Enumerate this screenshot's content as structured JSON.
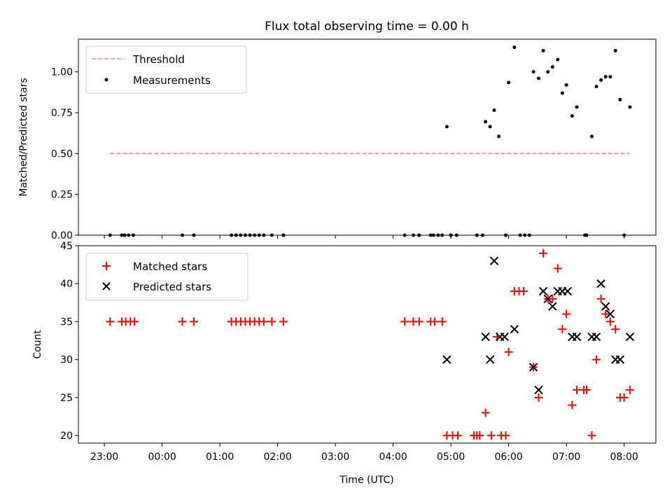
{
  "chart_data": [
    {
      "type": "scatter",
      "title": "Flux total observing time = 0.00 h",
      "xlabel": "",
      "ylabel": "Matched/Predicted stars",
      "xlim": [
        -0.45,
        9.55
      ],
      "ylim": [
        0.0,
        1.2
      ],
      "yticks": [
        "0.00",
        "0.25",
        "0.50",
        "0.75",
        "1.00"
      ],
      "legend_position": "upper-left",
      "threshold": {
        "name": "Threshold",
        "y": 0.5,
        "x_range": [
          0.1,
          9.1
        ],
        "color": "#ff8080",
        "style": "dashed"
      },
      "series": [
        {
          "name": "Measurements",
          "color": "#000000",
          "marker": "dot",
          "points": [
            [
              0.1,
              0
            ],
            [
              0.3,
              0
            ],
            [
              0.35,
              0
            ],
            [
              0.42,
              0
            ],
            [
              0.5,
              0
            ],
            [
              1.35,
              0
            ],
            [
              1.55,
              0
            ],
            [
              2.2,
              0
            ],
            [
              2.28,
              0
            ],
            [
              2.36,
              0
            ],
            [
              2.44,
              0
            ],
            [
              2.52,
              0
            ],
            [
              2.6,
              0
            ],
            [
              2.68,
              0
            ],
            [
              2.76,
              0
            ],
            [
              2.9,
              0
            ],
            [
              3.1,
              0
            ],
            [
              5.2,
              0
            ],
            [
              5.35,
              0
            ],
            [
              5.45,
              0
            ],
            [
              5.65,
              0
            ],
            [
              5.7,
              0
            ],
            [
              5.78,
              0
            ],
            [
              5.85,
              0
            ],
            [
              6.0,
              0
            ],
            [
              6.1,
              0
            ],
            [
              6.45,
              0
            ],
            [
              6.55,
              0
            ],
            [
              6.95,
              0
            ],
            [
              7.2,
              0
            ],
            [
              7.28,
              0
            ],
            [
              7.36,
              0
            ],
            [
              8.32,
              0
            ],
            [
              8.35,
              0
            ],
            [
              9.0,
              0
            ],
            [
              5.93,
              0.665
            ],
            [
              6.6,
              0.695
            ],
            [
              6.68,
              0.665
            ],
            [
              6.75,
              0.765
            ],
            [
              6.83,
              0.605
            ],
            [
              7.0,
              0.935
            ],
            [
              7.1,
              1.15
            ],
            [
              7.43,
              1.0
            ],
            [
              7.52,
              0.96
            ],
            [
              7.6,
              1.13
            ],
            [
              7.68,
              1.0
            ],
            [
              7.76,
              1.03
            ],
            [
              7.85,
              1.075
            ],
            [
              7.93,
              0.87
            ],
            [
              8.0,
              0.92
            ],
            [
              8.1,
              0.73
            ],
            [
              8.18,
              0.785
            ],
            [
              8.44,
              0.605
            ],
            [
              8.52,
              0.91
            ],
            [
              8.6,
              0.95
            ],
            [
              8.68,
              0.97
            ],
            [
              8.76,
              0.97
            ],
            [
              8.85,
              1.13
            ],
            [
              8.93,
              0.83
            ],
            [
              9.1,
              0.785
            ]
          ]
        }
      ]
    },
    {
      "type": "scatter",
      "title": "",
      "xlabel": "Time (UTC)",
      "ylabel": "Count",
      "xlim": [
        -0.45,
        9.55
      ],
      "ylim": [
        19.0,
        45.0
      ],
      "yticks": [
        "20",
        "25",
        "30",
        "35",
        "40",
        "45"
      ],
      "xticks": [
        "23:00",
        "00:00",
        "01:00",
        "02:00",
        "03:00",
        "04:00",
        "05:00",
        "06:00",
        "07:00",
        "08:00"
      ],
      "legend_position": "upper-left",
      "series": [
        {
          "name": "Matched stars",
          "color": "#ff0000",
          "marker": "plus",
          "points": [
            [
              0.1,
              35
            ],
            [
              0.3,
              35
            ],
            [
              0.37,
              35
            ],
            [
              0.45,
              35
            ],
            [
              0.52,
              35
            ],
            [
              1.35,
              35
            ],
            [
              1.55,
              35
            ],
            [
              2.2,
              35
            ],
            [
              2.28,
              35
            ],
            [
              2.36,
              35
            ],
            [
              2.44,
              35
            ],
            [
              2.52,
              35
            ],
            [
              2.6,
              35
            ],
            [
              2.68,
              35
            ],
            [
              2.76,
              35
            ],
            [
              2.9,
              35
            ],
            [
              3.1,
              35
            ],
            [
              5.2,
              35
            ],
            [
              5.35,
              35
            ],
            [
              5.45,
              35
            ],
            [
              5.65,
              35
            ],
            [
              5.72,
              35
            ],
            [
              5.85,
              35
            ],
            [
              5.93,
              20
            ],
            [
              6.03,
              20
            ],
            [
              6.12,
              20
            ],
            [
              6.4,
              20
            ],
            [
              6.45,
              20
            ],
            [
              6.5,
              20
            ],
            [
              6.7,
              20
            ],
            [
              6.87,
              20
            ],
            [
              6.95,
              20
            ],
            [
              6.6,
              23
            ],
            [
              6.8,
              33
            ],
            [
              7.0,
              31
            ],
            [
              7.1,
              39
            ],
            [
              7.18,
              39
            ],
            [
              7.26,
              39
            ],
            [
              7.43,
              29
            ],
            [
              7.52,
              25
            ],
            [
              7.6,
              44
            ],
            [
              7.68,
              38
            ],
            [
              7.76,
              38
            ],
            [
              7.85,
              42
            ],
            [
              7.93,
              34
            ],
            [
              8.0,
              36
            ],
            [
              8.1,
              24
            ],
            [
              8.18,
              26
            ],
            [
              8.3,
              26
            ],
            [
              8.35,
              26
            ],
            [
              8.44,
              20
            ],
            [
              8.52,
              30
            ],
            [
              8.6,
              38
            ],
            [
              8.68,
              36
            ],
            [
              8.76,
              35
            ],
            [
              8.85,
              34
            ],
            [
              8.93,
              25
            ],
            [
              9.0,
              25
            ],
            [
              9.1,
              26
            ]
          ]
        },
        {
          "name": "Predicted stars",
          "color": "#000000",
          "marker": "x",
          "points": [
            [
              5.93,
              30
            ],
            [
              6.6,
              33
            ],
            [
              6.68,
              30
            ],
            [
              6.75,
              43
            ],
            [
              6.85,
              33
            ],
            [
              6.93,
              33
            ],
            [
              7.1,
              34
            ],
            [
              7.43,
              29
            ],
            [
              7.52,
              26
            ],
            [
              7.6,
              39
            ],
            [
              7.68,
              38
            ],
            [
              7.76,
              37
            ],
            [
              7.85,
              39
            ],
            [
              7.93,
              39
            ],
            [
              8.02,
              39
            ],
            [
              8.1,
              33
            ],
            [
              8.18,
              33
            ],
            [
              8.44,
              33
            ],
            [
              8.52,
              33
            ],
            [
              8.6,
              40
            ],
            [
              8.68,
              37
            ],
            [
              8.76,
              36
            ],
            [
              8.85,
              30
            ],
            [
              8.93,
              30
            ],
            [
              9.1,
              33
            ]
          ]
        }
      ]
    }
  ]
}
